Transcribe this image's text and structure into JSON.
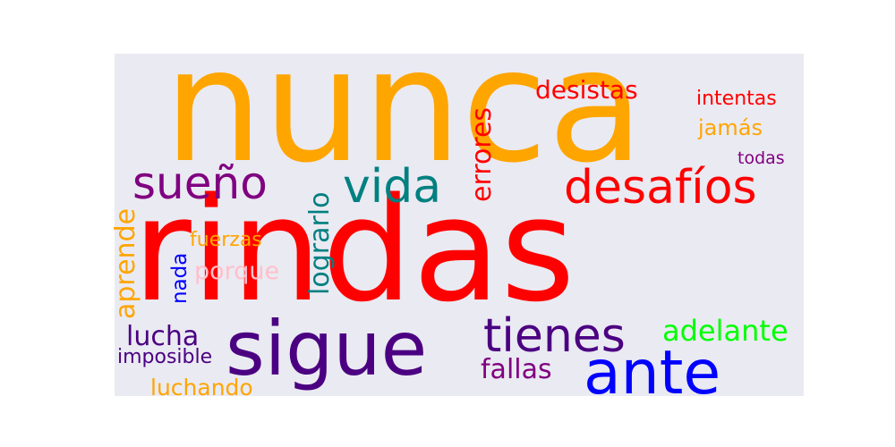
{
  "wordcloud": {
    "background": "#eaeaf2",
    "words": [
      {
        "text": "nunca",
        "color": "#ffa500",
        "orientation": "horizontal"
      },
      {
        "text": "rindas",
        "color": "#ff0000",
        "orientation": "horizontal"
      },
      {
        "text": "sigue",
        "color": "#4b0082",
        "orientation": "horizontal"
      },
      {
        "text": "ante",
        "color": "#0000ff",
        "orientation": "horizontal"
      },
      {
        "text": "desafíos",
        "color": "#ff0000",
        "orientation": "horizontal"
      },
      {
        "text": "tienes",
        "color": "#4b0082",
        "orientation": "horizontal"
      },
      {
        "text": "sueño",
        "color": "#800080",
        "orientation": "horizontal"
      },
      {
        "text": "vida",
        "color": "#008080",
        "orientation": "horizontal"
      },
      {
        "text": "errores",
        "color": "#ff0000",
        "orientation": "vertical"
      },
      {
        "text": "lograrlo",
        "color": "#008080",
        "orientation": "vertical"
      },
      {
        "text": "desistas",
        "color": "#ff0000",
        "orientation": "horizontal"
      },
      {
        "text": "intentas",
        "color": "#ff0000",
        "orientation": "horizontal"
      },
      {
        "text": "jamás",
        "color": "#ffa500",
        "orientation": "horizontal"
      },
      {
        "text": "todas",
        "color": "#800080",
        "orientation": "horizontal"
      },
      {
        "text": "adelante",
        "color": "#00ff00",
        "orientation": "horizontal"
      },
      {
        "text": "fallas",
        "color": "#800080",
        "orientation": "horizontal"
      },
      {
        "text": "lucha",
        "color": "#4b0082",
        "orientation": "horizontal"
      },
      {
        "text": "imposible",
        "color": "#4b0082",
        "orientation": "horizontal"
      },
      {
        "text": "luchando",
        "color": "#ffa500",
        "orientation": "horizontal"
      },
      {
        "text": "aprende",
        "color": "#ffa500",
        "orientation": "vertical"
      },
      {
        "text": "nada",
        "color": "#0000ff",
        "orientation": "vertical"
      },
      {
        "text": "fuerzas",
        "color": "#ffa500",
        "orientation": "horizontal"
      },
      {
        "text": "porque",
        "color": "#ffc0cb",
        "orientation": "horizontal"
      }
    ]
  }
}
